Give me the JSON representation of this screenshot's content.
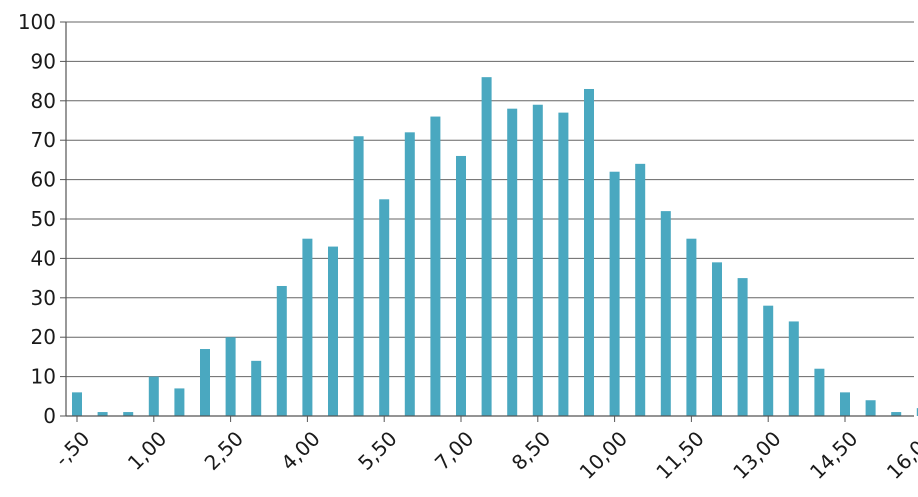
{
  "chart_data": {
    "type": "bar",
    "title": "",
    "xlabel": "",
    "ylabel": "",
    "ylim": [
      0,
      100
    ],
    "y_ticks": [
      0,
      10,
      20,
      30,
      40,
      50,
      60,
      70,
      80,
      90,
      100
    ],
    "y_tick_labels": [
      "0",
      "10",
      "20",
      "30",
      "40",
      "50",
      "60",
      "70",
      "80",
      "90",
      "100"
    ],
    "x": [
      -0.5,
      0.0,
      0.5,
      1.0,
      1.5,
      2.0,
      2.5,
      3.0,
      3.5,
      4.0,
      4.5,
      5.0,
      5.5,
      6.0,
      6.5,
      7.0,
      7.5,
      8.0,
      8.5,
      9.0,
      9.5,
      10.0,
      10.5,
      11.0,
      11.5,
      12.0,
      12.5,
      13.0,
      13.5,
      14.0,
      14.5,
      15.0,
      15.5,
      16.0
    ],
    "values": [
      6,
      1,
      1,
      10,
      7,
      17,
      20,
      14,
      33,
      45,
      43,
      71,
      55,
      72,
      76,
      66,
      86,
      78,
      79,
      77,
      83,
      62,
      64,
      52,
      45,
      39,
      35,
      28,
      24,
      12,
      6,
      4,
      1,
      2
    ],
    "x_tick_values": [
      -0.5,
      1.0,
      2.5,
      4.0,
      5.5,
      7.0,
      8.5,
      10.0,
      11.5,
      13.0,
      14.5,
      16.0
    ],
    "x_tick_labels": [
      "-,50",
      "1,00",
      "2,50",
      "4,00",
      "5,50",
      "7,00",
      "8,50",
      "10,00",
      "11,50",
      "13,00",
      "14,50",
      "16,00"
    ],
    "grid": "horizontal",
    "colors": {
      "bar": "#4aa8c0",
      "grid": "#666666",
      "axis": "#555555",
      "text": "#1a1a1a"
    }
  }
}
